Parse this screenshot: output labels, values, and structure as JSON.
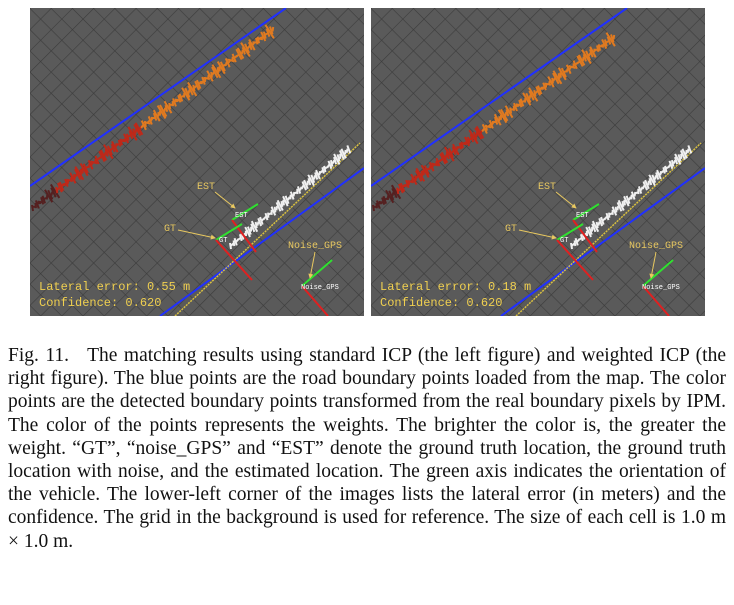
{
  "panels": [
    {
      "est_label": "EST",
      "est_marker": "EST",
      "gt_label": "GT",
      "gt_marker": "GT",
      "noise_label": "Noise_GPS",
      "noise_marker": "Noise_GPS",
      "lateral_error": "Lateral error: 0.55 m",
      "confidence": "Confidence: 0.620"
    },
    {
      "est_label": "EST",
      "est_marker": "EST",
      "gt_label": "GT",
      "gt_marker": "GT",
      "noise_label": "Noise_GPS",
      "noise_marker": "Noise_GPS",
      "lateral_error": "Lateral error: 0.18 m",
      "confidence": "Confidence: 0.620"
    }
  ],
  "caption": {
    "label": "Fig. 11.",
    "text": "The matching results using standard ICP (the left figure) and weighted ICP (the right figure). The blue points are the road boundary points loaded from the map. The color points are the detected boundary points transformed from the real boundary pixels by IPM. The color of the points represents the weights. The brighter the color is, the greater the weight. “GT”, “noise_GPS” and “EST” denote the ground truth location, the ground truth location with noise, and the estimated location. The green axis indicates the orientation of the vehicle. The lower-left corner of the images lists the lateral error (in meters) and the confidence. The grid in the background is used for reference. The size of each cell is 1.0 m × 1.0 m."
  }
}
